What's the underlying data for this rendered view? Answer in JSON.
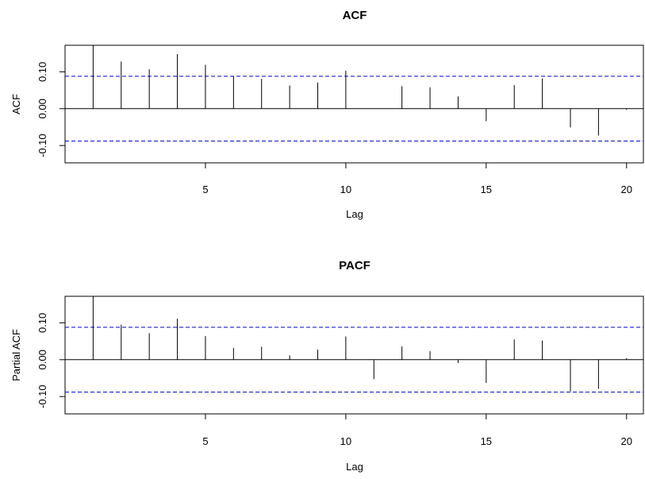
{
  "chart_data": [
    {
      "type": "bar",
      "title": "ACF",
      "xlabel": "Lag",
      "ylabel": "ACF",
      "x": [
        1,
        2,
        3,
        4,
        5,
        6,
        7,
        8,
        9,
        10,
        11,
        12,
        13,
        14,
        15,
        16,
        17,
        18,
        19,
        20
      ],
      "values": [
        0.172,
        0.128,
        0.107,
        0.148,
        0.119,
        0.087,
        0.081,
        0.063,
        0.071,
        0.103,
        0.0,
        0.061,
        0.058,
        0.033,
        -0.034,
        0.064,
        0.082,
        -0.051,
        -0.073,
        -0.003
      ],
      "confidence_band": 0.088,
      "xlim": [
        0,
        20.6
      ],
      "ylim": [
        -0.147,
        0.172
      ],
      "xticks": [
        5,
        10,
        15,
        20
      ],
      "xtick_labels": [
        "5",
        "10",
        "15",
        "20"
      ],
      "yticks": [
        -0.1,
        0.0,
        0.1
      ],
      "ytick_labels": [
        "-0.10",
        "0.00",
        "0.10"
      ],
      "band_color": "#0000cc",
      "bar_color": "#000000",
      "grid": false,
      "legend": "none"
    },
    {
      "type": "bar",
      "title": "PACF",
      "xlabel": "Lag",
      "ylabel": "Partial ACF",
      "x": [
        1,
        2,
        3,
        4,
        5,
        6,
        7,
        8,
        9,
        10,
        11,
        12,
        13,
        14,
        15,
        16,
        17,
        18,
        19,
        20
      ],
      "values": [
        0.172,
        0.095,
        0.072,
        0.111,
        0.064,
        0.032,
        0.035,
        0.012,
        0.027,
        0.063,
        -0.053,
        0.036,
        0.023,
        -0.009,
        -0.063,
        0.055,
        0.052,
        -0.086,
        -0.079,
        0.004
      ],
      "confidence_band": 0.088,
      "xlim": [
        0,
        20.6
      ],
      "ylim": [
        -0.147,
        0.172
      ],
      "xticks": [
        5,
        10,
        15,
        20
      ],
      "xtick_labels": [
        "5",
        "10",
        "15",
        "20"
      ],
      "yticks": [
        -0.1,
        0.0,
        0.1
      ],
      "ytick_labels": [
        "-0.10",
        "0.00",
        "0.10"
      ],
      "band_color": "#0000cc",
      "bar_color": "#000000",
      "grid": false,
      "legend": "none"
    }
  ]
}
